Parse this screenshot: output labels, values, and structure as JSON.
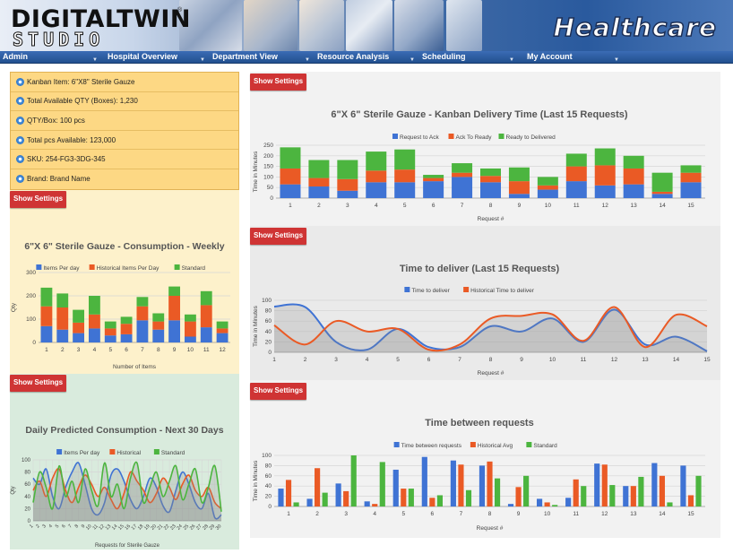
{
  "header": {
    "logo_line1": "DIGITALTWIN",
    "logo_line2": "STUDIO",
    "logo_tm": "®",
    "brand_title": "Healthcare"
  },
  "nav": {
    "items": [
      {
        "label": "Admin"
      },
      {
        "label": "Hospital Overview"
      },
      {
        "label": "Department View"
      },
      {
        "label": "Resource Analysis"
      },
      {
        "label": "Scheduling"
      },
      {
        "label": "My Account"
      }
    ]
  },
  "info": {
    "rows": [
      {
        "text": "Kanban Item: 6\"X8\" Sterile Gauze"
      },
      {
        "text": "Total Available QTY (Boxes): 1,230"
      },
      {
        "text": "QTY/Box: 100 pcs"
      },
      {
        "text": "Total pcs Available: 123,000"
      },
      {
        "text": "SKU: 254-FG3-3DG-345"
      },
      {
        "text": "Brand: Brand Name"
      }
    ]
  },
  "buttons": {
    "show_settings": "Show Settings"
  },
  "colors": {
    "blue": "#3f73d4",
    "orange": "#ea5a25",
    "green": "#4cb53f",
    "button_red": "#cf3434",
    "nav_blue": "#2b5ea3"
  },
  "chart_data": [
    {
      "id": "weekly",
      "type": "bar",
      "stacked": true,
      "title": "6\"X 6\" Sterile Gauze - Consumption - Weekly",
      "xlabel": "Number of Items",
      "ylabel": "Qty",
      "ylim": [
        0,
        300
      ],
      "yticks": [
        0,
        100,
        200,
        300
      ],
      "categories": [
        "1",
        "2",
        "3",
        "4",
        "5",
        "6",
        "7",
        "8",
        "9",
        "10",
        "11",
        "12"
      ],
      "series": [
        {
          "name": "Items Per day",
          "color": "#3f73d4",
          "values": [
            70,
            55,
            40,
            60,
            30,
            35,
            95,
            55,
            95,
            25,
            65,
            40
          ]
        },
        {
          "name": "Historical Items Per Day",
          "color": "#ea5a25",
          "values": [
            85,
            95,
            45,
            60,
            30,
            45,
            60,
            35,
            105,
            65,
            95,
            20
          ]
        },
        {
          "name": "Standard",
          "color": "#4cb53f",
          "values": [
            80,
            60,
            55,
            80,
            30,
            30,
            40,
            35,
            40,
            30,
            60,
            30
          ]
        }
      ],
      "grid": true,
      "legend": "top"
    },
    {
      "id": "daily",
      "type": "line",
      "title": "Daily Predicted Consumption - Next 30 Days",
      "xlabel": "Requests for Sterile Gauze",
      "ylabel": "Qty",
      "ylim": [
        0,
        100
      ],
      "yticks": [
        0,
        20,
        40,
        60,
        80,
        100
      ],
      "x": [
        1,
        2,
        3,
        4,
        5,
        6,
        7,
        8,
        9,
        10,
        11,
        12,
        13,
        14,
        15,
        16,
        17,
        18,
        19,
        20,
        21,
        22,
        23,
        24,
        25,
        26,
        27,
        28,
        29,
        30
      ],
      "series": [
        {
          "name": "Items Per day",
          "color": "#3f73d4",
          "values": [
            70,
            60,
            85,
            40,
            20,
            55,
            80,
            95,
            60,
            20,
            10,
            30,
            75,
            85,
            65,
            35,
            20,
            40,
            70,
            55,
            25,
            15,
            50,
            80,
            60,
            30,
            20,
            45,
            5,
            10
          ]
        },
        {
          "name": "Historical",
          "color": "#ea5a25",
          "values": [
            50,
            65,
            40,
            70,
            85,
            50,
            30,
            55,
            75,
            60,
            40,
            55,
            35,
            20,
            45,
            80,
            65,
            50,
            30,
            45,
            70,
            55,
            35,
            60,
            75,
            50,
            40,
            55,
            30,
            20
          ]
        },
        {
          "name": "Standard",
          "color": "#4cb53f",
          "values": [
            30,
            80,
            55,
            20,
            90,
            40,
            65,
            30,
            85,
            50,
            25,
            95,
            40,
            60,
            20,
            70,
            95,
            30,
            55,
            80,
            40,
            65,
            90,
            35,
            60,
            85,
            30,
            55,
            90,
            15
          ]
        }
      ],
      "area": true,
      "grid": true,
      "legend": "top"
    },
    {
      "id": "kanban",
      "type": "bar",
      "stacked": true,
      "title": "6\"X 6\" Sterile Gauze - Kanban Delivery Time (Last 15 Requests)",
      "xlabel": "Request #",
      "ylabel": "Time in Minutes",
      "ylim": [
        0,
        250
      ],
      "yticks": [
        0,
        50,
        100,
        150,
        200,
        250
      ],
      "categories": [
        "1",
        "2",
        "3",
        "4",
        "5",
        "6",
        "7",
        "8",
        "9",
        "10",
        "11",
        "12",
        "13",
        "14",
        "15"
      ],
      "series": [
        {
          "name": "Request to Ack",
          "color": "#3f73d4",
          "values": [
            65,
            55,
            35,
            75,
            75,
            80,
            100,
            75,
            20,
            40,
            80,
            60,
            65,
            20,
            75
          ]
        },
        {
          "name": "Ack To Ready",
          "color": "#ea5a25",
          "values": [
            75,
            40,
            55,
            55,
            60,
            15,
            20,
            30,
            60,
            20,
            70,
            95,
            75,
            10,
            45
          ]
        },
        {
          "name": "Ready to Delivered",
          "color": "#4cb53f",
          "values": [
            100,
            85,
            90,
            90,
            95,
            15,
            45,
            35,
            65,
            40,
            60,
            80,
            60,
            90,
            35
          ]
        }
      ],
      "grid": true,
      "legend": "top"
    },
    {
      "id": "deliver",
      "type": "line",
      "title": "Time to deliver (Last 15 Requests)",
      "xlabel": "Request #",
      "ylabel": "Time in Minutes",
      "ylim": [
        0,
        100
      ],
      "yticks": [
        0,
        20,
        40,
        60,
        80,
        100
      ],
      "x": [
        1,
        2,
        3,
        4,
        5,
        6,
        7,
        8,
        9,
        10,
        11,
        12,
        13,
        14,
        15
      ],
      "series": [
        {
          "name": "Time to deliver",
          "color": "#3f73d4",
          "values": [
            88,
            87,
            20,
            5,
            45,
            10,
            10,
            50,
            40,
            65,
            20,
            82,
            15,
            30,
            2
          ]
        },
        {
          "name": "Historical Time to deliver",
          "color": "#ea5a25",
          "values": [
            52,
            15,
            60,
            40,
            45,
            5,
            15,
            65,
            70,
            73,
            22,
            87,
            10,
            72,
            50
          ]
        }
      ],
      "area": true,
      "grid": true,
      "legend": "top"
    },
    {
      "id": "between",
      "type": "bar",
      "stacked": false,
      "title": "Time between requests",
      "xlabel": "Request #",
      "ylabel": "Time in Minutes",
      "ylim": [
        0,
        100
      ],
      "yticks": [
        0,
        20,
        40,
        60,
        80,
        100
      ],
      "categories": [
        "1",
        "2",
        "3",
        "4",
        "5",
        "6",
        "7",
        "8",
        "9",
        "10",
        "11",
        "12",
        "13",
        "14",
        "15"
      ],
      "series": [
        {
          "name": "Time between requests",
          "color": "#3f73d4",
          "values": [
            35,
            15,
            45,
            10,
            72,
            97,
            90,
            80,
            5,
            15,
            17,
            84,
            40,
            85,
            80
          ]
        },
        {
          "name": "Historical Avg",
          "color": "#ea5a25",
          "values": [
            52,
            75,
            30,
            5,
            35,
            17,
            82,
            88,
            38,
            8,
            53,
            82,
            40,
            60,
            22
          ]
        },
        {
          "name": "Standard",
          "color": "#4cb53f",
          "values": [
            8,
            27,
            100,
            87,
            35,
            22,
            32,
            55,
            60,
            3,
            40,
            42,
            58,
            8,
            60
          ]
        }
      ],
      "grid": true,
      "legend": "top"
    }
  ]
}
